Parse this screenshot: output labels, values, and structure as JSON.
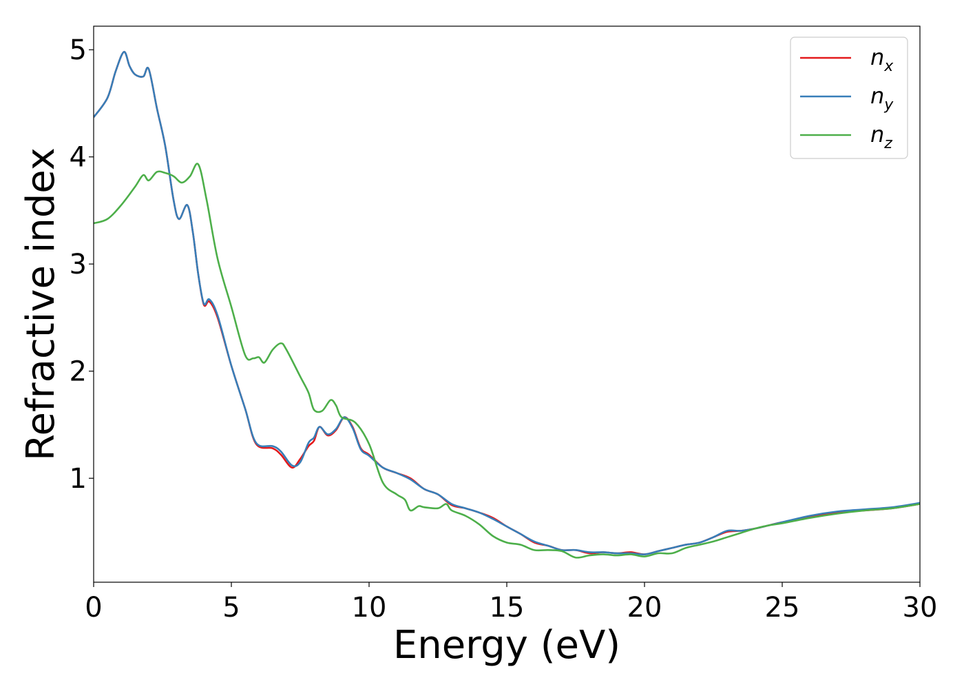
{
  "chart_data": {
    "type": "line",
    "xlabel": "Energy (eV)",
    "ylabel": "Refractive index",
    "xlim": [
      0,
      30
    ],
    "ylim": [
      0.03,
      5.22
    ],
    "xticks": [
      "0",
      "5",
      "10",
      "15",
      "20",
      "25",
      "30"
    ],
    "xtick_values": [
      0,
      5,
      10,
      15,
      20,
      25,
      30
    ],
    "yticks": [
      "1",
      "2",
      "3",
      "4",
      "5"
    ],
    "ytick_values": [
      1,
      2,
      3,
      4,
      5
    ],
    "grid": false,
    "legend": {
      "placement": "top-right"
    },
    "series": [
      {
        "name": "n",
        "subscript": "x",
        "color": "#e41a1c",
        "x": [
          0,
          0.5,
          0.8,
          1.1,
          1.3,
          1.5,
          1.8,
          2.0,
          2.3,
          2.6,
          2.9,
          3.1,
          3.4,
          3.6,
          3.8,
          4.0,
          4.2,
          4.5,
          5.0,
          5.5,
          5.9,
          6.5,
          6.8,
          7.2,
          7.5,
          7.8,
          8.0,
          8.2,
          8.5,
          8.8,
          9.1,
          9.4,
          9.7,
          10.0,
          10.5,
          11.0,
          11.5,
          12.0,
          12.5,
          13.0,
          13.5,
          14.0,
          14.5,
          15.0,
          15.5,
          16.0,
          16.5,
          17.0,
          17.5,
          18.0,
          18.5,
          19.0,
          19.5,
          20.0,
          20.5,
          21.0,
          21.5,
          22.0,
          22.5,
          23.0,
          23.5,
          24.0,
          24.5,
          25.0,
          26.0,
          27.0,
          28.0,
          29.0,
          30.0
        ],
        "values": [
          4.37,
          4.55,
          4.8,
          4.98,
          4.85,
          4.77,
          4.75,
          4.82,
          4.45,
          4.1,
          3.6,
          3.42,
          3.55,
          3.3,
          2.9,
          2.62,
          2.65,
          2.5,
          2.05,
          1.65,
          1.32,
          1.28,
          1.22,
          1.1,
          1.18,
          1.3,
          1.35,
          1.48,
          1.4,
          1.45,
          1.57,
          1.48,
          1.28,
          1.22,
          1.1,
          1.05,
          1.0,
          0.9,
          0.85,
          0.75,
          0.72,
          0.68,
          0.63,
          0.55,
          0.48,
          0.4,
          0.37,
          0.33,
          0.33,
          0.3,
          0.31,
          0.3,
          0.31,
          0.29,
          0.32,
          0.35,
          0.38,
          0.4,
          0.45,
          0.5,
          0.51,
          0.53,
          0.56,
          0.59,
          0.64,
          0.68,
          0.7,
          0.72,
          0.76
        ]
      },
      {
        "name": "n",
        "subscript": "y",
        "color": "#377eb8",
        "x": [
          0,
          0.5,
          0.8,
          1.1,
          1.3,
          1.5,
          1.8,
          2.0,
          2.3,
          2.6,
          2.9,
          3.1,
          3.4,
          3.6,
          3.8,
          4.0,
          4.2,
          4.5,
          5.0,
          5.5,
          5.9,
          6.5,
          6.8,
          7.2,
          7.5,
          7.8,
          8.0,
          8.2,
          8.5,
          8.8,
          9.1,
          9.4,
          9.7,
          10.0,
          10.5,
          11.0,
          11.5,
          12.0,
          12.5,
          13.0,
          13.5,
          14.0,
          14.5,
          15.0,
          15.5,
          16.0,
          16.5,
          17.0,
          17.5,
          18.0,
          18.5,
          19.0,
          19.5,
          20.0,
          20.5,
          21.0,
          21.5,
          22.0,
          22.5,
          23.0,
          23.5,
          24.0,
          24.5,
          25.0,
          26.0,
          27.0,
          28.0,
          29.0,
          30.0
        ],
        "values": [
          4.37,
          4.55,
          4.8,
          4.98,
          4.85,
          4.77,
          4.75,
          4.82,
          4.45,
          4.1,
          3.6,
          3.42,
          3.55,
          3.3,
          2.9,
          2.63,
          2.67,
          2.52,
          2.05,
          1.65,
          1.33,
          1.3,
          1.25,
          1.12,
          1.15,
          1.33,
          1.38,
          1.48,
          1.41,
          1.46,
          1.57,
          1.47,
          1.27,
          1.21,
          1.1,
          1.05,
          0.99,
          0.9,
          0.85,
          0.76,
          0.72,
          0.68,
          0.62,
          0.55,
          0.48,
          0.41,
          0.37,
          0.33,
          0.33,
          0.31,
          0.31,
          0.3,
          0.3,
          0.29,
          0.32,
          0.35,
          0.38,
          0.4,
          0.45,
          0.51,
          0.51,
          0.53,
          0.56,
          0.59,
          0.65,
          0.69,
          0.71,
          0.73,
          0.77
        ]
      },
      {
        "name": "n",
        "subscript": "z",
        "color": "#4daf4a",
        "x": [
          0,
          0.5,
          1.0,
          1.5,
          1.8,
          2.0,
          2.3,
          2.6,
          2.9,
          3.2,
          3.5,
          3.8,
          4.1,
          4.5,
          5.0,
          5.5,
          5.8,
          6.0,
          6.2,
          6.5,
          6.8,
          7.0,
          7.5,
          7.8,
          8.0,
          8.3,
          8.6,
          8.8,
          9.0,
          9.5,
          10.0,
          10.5,
          11.0,
          11.3,
          11.5,
          11.8,
          12.0,
          12.5,
          12.8,
          13.0,
          13.5,
          14.0,
          14.5,
          15.0,
          15.5,
          16.0,
          16.5,
          17.0,
          17.5,
          18.0,
          18.5,
          19.0,
          19.5,
          20.0,
          20.5,
          21.0,
          21.5,
          22.0,
          22.5,
          23.0,
          23.5,
          24.0,
          24.5,
          25.0,
          26.0,
          27.0,
          28.0,
          29.0,
          30.0
        ],
        "values": [
          3.38,
          3.42,
          3.55,
          3.72,
          3.83,
          3.78,
          3.86,
          3.85,
          3.82,
          3.76,
          3.82,
          3.93,
          3.6,
          3.05,
          2.6,
          2.15,
          2.12,
          2.13,
          2.08,
          2.2,
          2.26,
          2.2,
          1.95,
          1.8,
          1.64,
          1.63,
          1.73,
          1.68,
          1.57,
          1.52,
          1.32,
          0.96,
          0.85,
          0.8,
          0.7,
          0.74,
          0.73,
          0.72,
          0.76,
          0.7,
          0.65,
          0.57,
          0.46,
          0.4,
          0.38,
          0.33,
          0.33,
          0.32,
          0.26,
          0.28,
          0.29,
          0.28,
          0.29,
          0.27,
          0.3,
          0.3,
          0.35,
          0.38,
          0.41,
          0.45,
          0.49,
          0.53,
          0.56,
          0.58,
          0.63,
          0.67,
          0.7,
          0.72,
          0.76
        ]
      }
    ]
  }
}
